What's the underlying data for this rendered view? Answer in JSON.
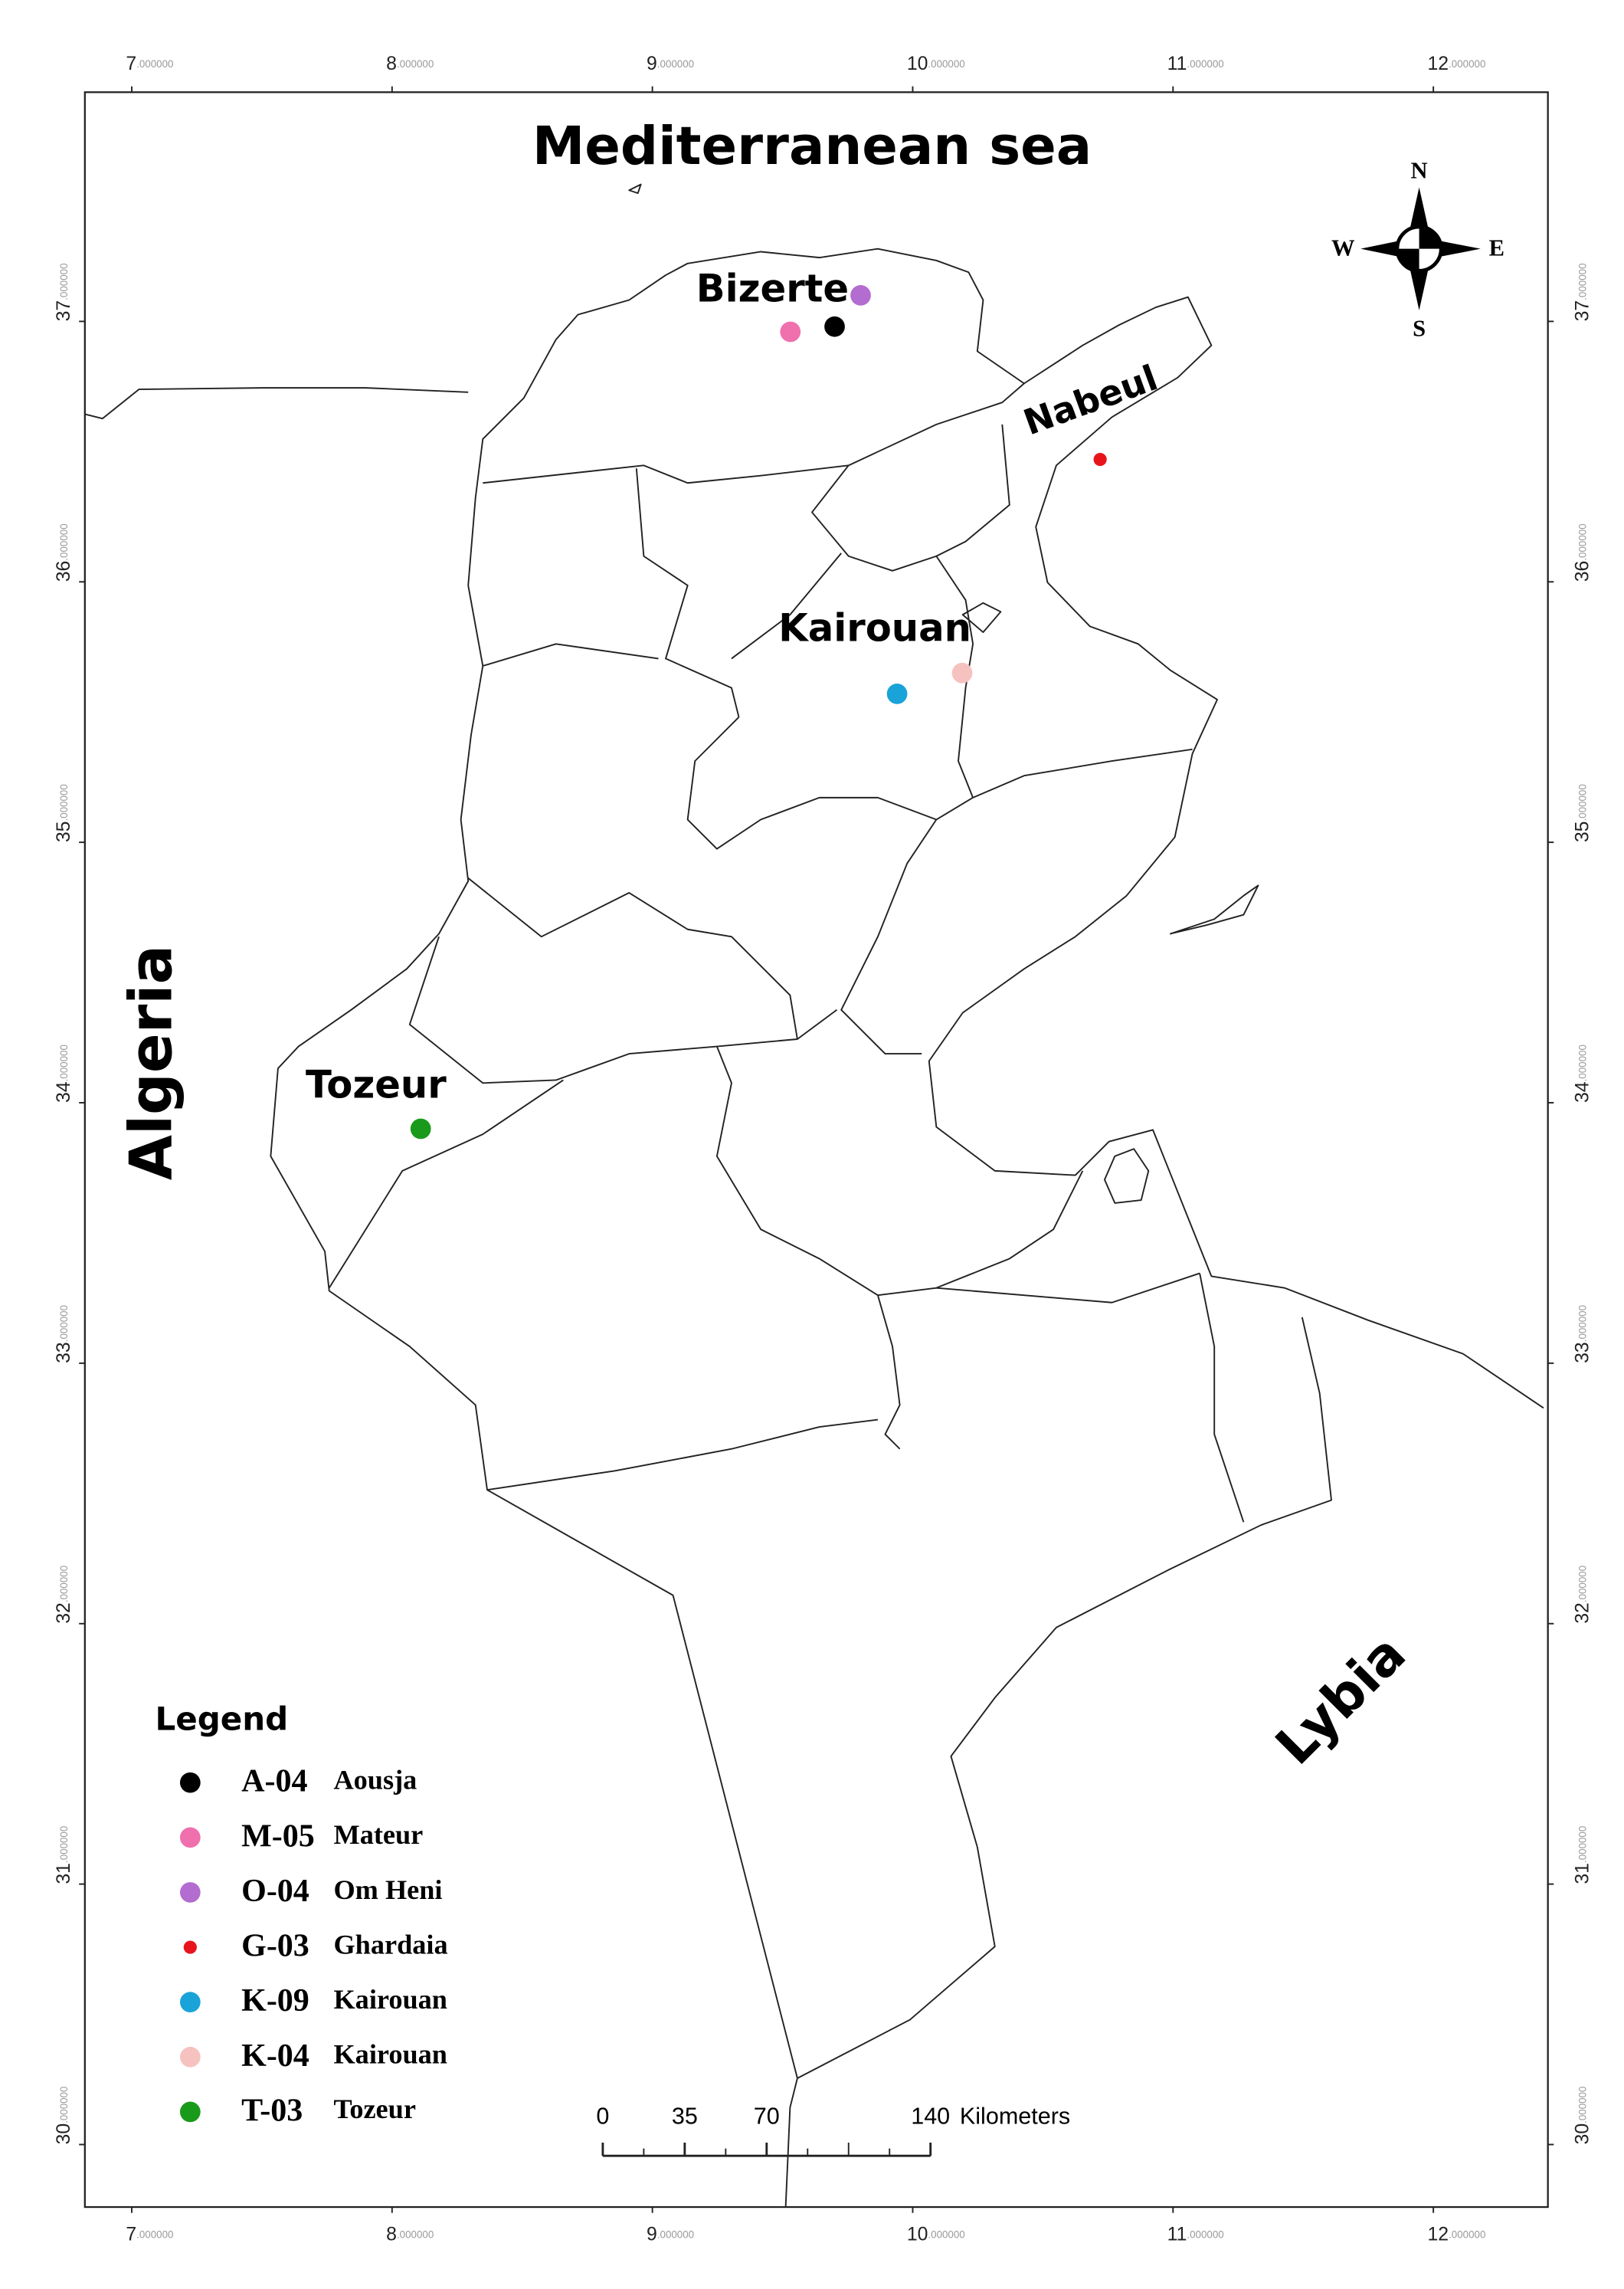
{
  "map": {
    "title": "Mediterranean sea",
    "xlim": [
      6.82,
      12.44
    ],
    "ylim": [
      29.76,
      37.88
    ],
    "xticks": [
      {
        "value": 7,
        "label": "7.000000"
      },
      {
        "value": 8,
        "label": "8.000000"
      },
      {
        "value": 9,
        "label": "9.000000"
      },
      {
        "value": 10,
        "label": "10.000000"
      },
      {
        "value": 11,
        "label": "11.000000"
      },
      {
        "value": 12,
        "label": "12.000000"
      }
    ],
    "yticks": [
      {
        "value": 30,
        "label": "30.000000"
      },
      {
        "value": 31,
        "label": "31.000000"
      },
      {
        "value": 32,
        "label": "32.000000"
      },
      {
        "value": 33,
        "label": "33.000000"
      },
      {
        "value": 34,
        "label": "34.000000"
      },
      {
        "value": 35,
        "label": "35.000000"
      },
      {
        "value": 36,
        "label": "36.000000"
      },
      {
        "value": 37,
        "label": "37.000000"
      }
    ],
    "labels": {
      "algeria": "Algeria",
      "lybia": "Lybia",
      "bizerte": "Bizerte",
      "nabeul": "Nabeul",
      "kairouan": "Kairouan",
      "tozeur": "Tozeur"
    },
    "compass": {
      "n": "N",
      "s": "S",
      "e": "E",
      "w": "W"
    },
    "legend_title": "Legend",
    "sites": [
      {
        "code": "A-04",
        "name": "Aousja",
        "color": "#000000",
        "lon": 9.7,
        "lat": 36.98
      },
      {
        "code": "M-05",
        "name": "Mateur",
        "color": "#f06fad",
        "lon": 9.53,
        "lat": 36.96
      },
      {
        "code": "O-04",
        "name": "Om Heni",
        "color": "#b36ccf",
        "lon": 9.8,
        "lat": 37.1
      },
      {
        "code": "G-03",
        "name": "Ghardaia",
        "color": "#e8141c",
        "lon": 10.72,
        "lat": 36.47
      },
      {
        "code": "K-09",
        "name": "Kairouan",
        "color": "#1aa3d8",
        "lon": 9.94,
        "lat": 35.57
      },
      {
        "code": "K-04",
        "name": "Kairouan",
        "color": "#f6c2c0",
        "lon": 10.19,
        "lat": 35.65
      },
      {
        "code": "T-03",
        "name": "Tozeur",
        "color": "#1a9a1a",
        "lon": 8.11,
        "lat": 33.9
      }
    ],
    "scale_bar": {
      "ticks": [
        0,
        35,
        70,
        140
      ],
      "unit": "Kilometers"
    }
  }
}
